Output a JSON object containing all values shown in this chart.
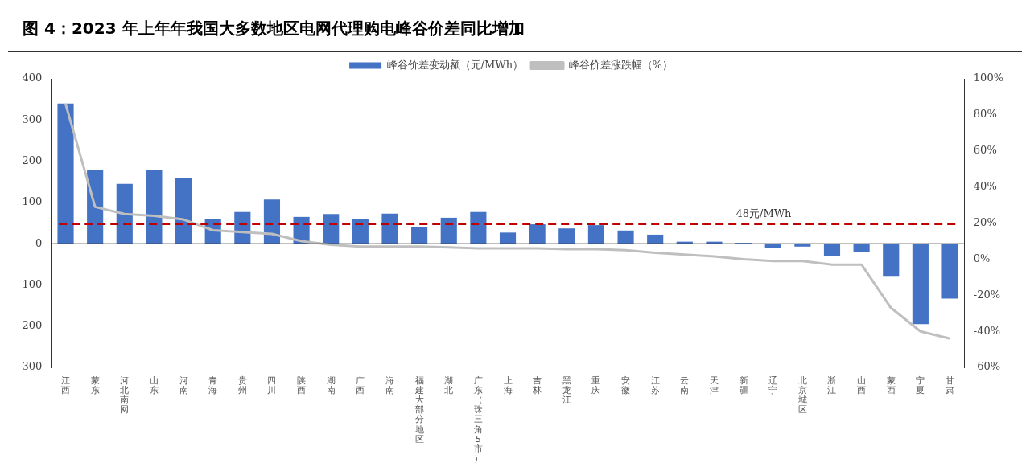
{
  "chart_data": {
    "type": "bar",
    "title": "图 4：2023 年上年年我国大多数地区电网代理购电峰谷价差同比增加",
    "categories": [
      "江西",
      "蒙东",
      "河北南网",
      "山东",
      "河南",
      "青海",
      "贵州",
      "四川",
      "陕西",
      "湖南",
      "广西",
      "海南",
      "福建大部分地区",
      "湖北",
      "广东（珠三角5市）",
      "上海",
      "吉林",
      "黑龙江",
      "重庆",
      "安徽",
      "江苏",
      "云南",
      "天津",
      "新疆",
      "辽宁",
      "北京城区",
      "浙江",
      "山西",
      "蒙西",
      "宁夏",
      "甘肃"
    ],
    "series": [
      {
        "name": "峰谷价差变动额（元/MWh）",
        "color": "#4472c4",
        "values": [
          340,
          178,
          145,
          178,
          160,
          60,
          77,
          107,
          65,
          72,
          60,
          73,
          40,
          63,
          77,
          27,
          47,
          37,
          45,
          32,
          22,
          5,
          5,
          2,
          -10,
          -7,
          -30,
          -20,
          -80,
          -195,
          -133
        ]
      },
      {
        "name": "峰谷价差涨跌幅（%）",
        "type": "line",
        "axis": "y2",
        "color": "#bfbfbf",
        "values": [
          86,
          29,
          25,
          24,
          22,
          16,
          15,
          14,
          10,
          8,
          7,
          7,
          7,
          6.5,
          6,
          6,
          6,
          5.5,
          5.5,
          5,
          3.5,
          2.5,
          1.5,
          0,
          -1,
          -1,
          -3,
          -3,
          -27,
          -40,
          -44
        ]
      }
    ],
    "ylim": [
      -300,
      400
    ],
    "yticks": [
      -300,
      -200,
      -100,
      0,
      100,
      200,
      300,
      400
    ],
    "y2lim": [
      -60,
      100
    ],
    "y2ticks": [
      {
        "value": -60,
        "label": "-60%"
      },
      {
        "value": -40,
        "label": "-40%"
      },
      {
        "value": -20,
        "label": "-20%"
      },
      {
        "value": 0,
        "label": "0%"
      },
      {
        "value": 20,
        "label": "20%"
      },
      {
        "value": 40,
        "label": "40%"
      },
      {
        "value": 60,
        "label": "60%"
      },
      {
        "value": 80,
        "label": "80%"
      },
      {
        "value": 100,
        "label": "100%"
      }
    ],
    "ref_lines": [
      {
        "axis": "y",
        "value": 48,
        "label": "48元/MWh",
        "color": "#c00000",
        "line_style": "dashed"
      }
    ],
    "legend": "top",
    "grid": false,
    "marker": "none",
    "line_style": "solid"
  }
}
